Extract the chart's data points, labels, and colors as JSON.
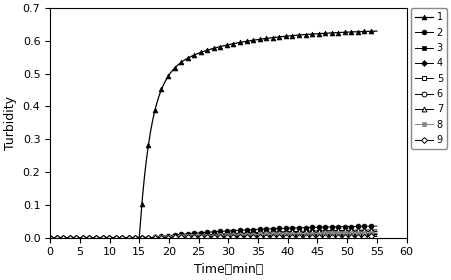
{
  "title": "",
  "xlabel": "Time（min）",
  "ylabel": "Turbidity",
  "xlim": [
    0,
    60
  ],
  "ylim": [
    0,
    0.7
  ],
  "xticks": [
    0,
    5,
    10,
    15,
    20,
    25,
    30,
    35,
    40,
    45,
    50,
    55,
    60
  ],
  "yticks": [
    0.0,
    0.1,
    0.2,
    0.3,
    0.4,
    0.5,
    0.6,
    0.7
  ],
  "legend_labels": [
    "1",
    "2",
    "3",
    "4",
    "5",
    "6",
    "7",
    "8",
    "9"
  ],
  "color": "#000000",
  "gray": "#888888",
  "bg_color": "#ffffff"
}
